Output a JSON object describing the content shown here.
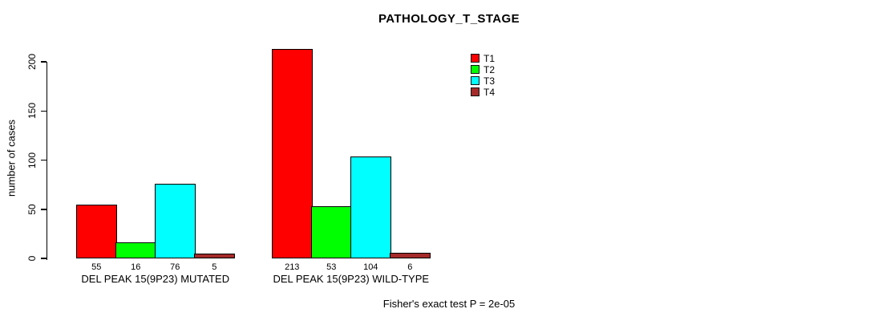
{
  "figure": {
    "title": "PATHOLOGY_T_STAGE",
    "footer": "Fisher's exact test P = 2e-05"
  },
  "chart_data": {
    "type": "bar",
    "title": "PATHOLOGY_T_STAGE",
    "xlabel": "",
    "ylabel": "number of cases",
    "ylim": [
      0,
      220
    ],
    "yticks": [
      0,
      50,
      100,
      150,
      200
    ],
    "grid": false,
    "legend_position": "top-right",
    "categories": [
      "DEL PEAK 15(9P23) MUTATED",
      "DEL PEAK 15(9P23) WILD-TYPE"
    ],
    "series": [
      {
        "name": "T1",
        "color": "#ff0000",
        "values": [
          55,
          213
        ]
      },
      {
        "name": "T2",
        "color": "#00ff00",
        "values": [
          16,
          53
        ]
      },
      {
        "name": "T3",
        "color": "#00ffff",
        "values": [
          76,
          104
        ]
      },
      {
        "name": "T4",
        "color": "#a52a2a",
        "values": [
          5,
          6
        ]
      }
    ],
    "bar_value_labels": [
      [
        "55",
        "16",
        "76",
        "5"
      ],
      [
        "213",
        "53",
        "104",
        "6"
      ]
    ],
    "annotation": "Fisher's exact test P = 2e-05"
  }
}
